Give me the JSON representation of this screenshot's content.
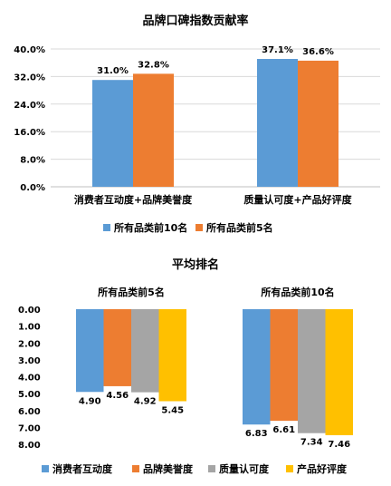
{
  "chart_data": [
    {
      "type": "bar",
      "title": "品牌口碑指数贡献率",
      "categories": [
        "消费者互动度+品牌美誉度",
        "质量认可度+产品好评度"
      ],
      "series": [
        {
          "name": "所有品类前10名",
          "values": [
            31.0,
            37.1
          ],
          "labels": [
            "31.0%",
            "37.1%"
          ]
        },
        {
          "name": "所有品类前5名",
          "values": [
            32.8,
            36.6
          ],
          "labels": [
            "32.8%",
            "36.6%"
          ]
        }
      ],
      "y_ticks": [
        "0.0%",
        "8.0%",
        "16.0%",
        "24.0%",
        "32.0%",
        "40.0%"
      ],
      "ylim": [
        0,
        40
      ],
      "grid": true,
      "legend_position": "bottom",
      "colors": [
        "#5b9bd5",
        "#ed7d31"
      ]
    },
    {
      "type": "bar",
      "title": "平均排名",
      "groups": [
        "所有品类前5名",
        "所有品类前10名"
      ],
      "series": [
        {
          "name": "消费者互动度",
          "values": [
            4.9,
            6.83
          ],
          "labels": [
            "4.90",
            "6.83"
          ]
        },
        {
          "name": "品牌美誉度",
          "values": [
            4.56,
            6.61
          ],
          "labels": [
            "4.56",
            "6.61"
          ]
        },
        {
          "name": "质量认可度",
          "values": [
            4.92,
            7.34
          ],
          "labels": [
            "4.92",
            "7.34"
          ]
        },
        {
          "name": "产品好评度",
          "values": [
            5.45,
            7.46
          ],
          "labels": [
            "5.45",
            "7.46"
          ]
        }
      ],
      "y_ticks": [
        "0.00",
        "1.00",
        "2.00",
        "3.00",
        "4.00",
        "5.00",
        "6.00",
        "7.00",
        "8.00"
      ],
      "ylim": [
        0,
        8
      ],
      "y_reversed": true,
      "grid": false,
      "legend_position": "bottom",
      "colors": [
        "#5b9bd5",
        "#ed7d31",
        "#a5a5a5",
        "#ffc000"
      ]
    }
  ]
}
